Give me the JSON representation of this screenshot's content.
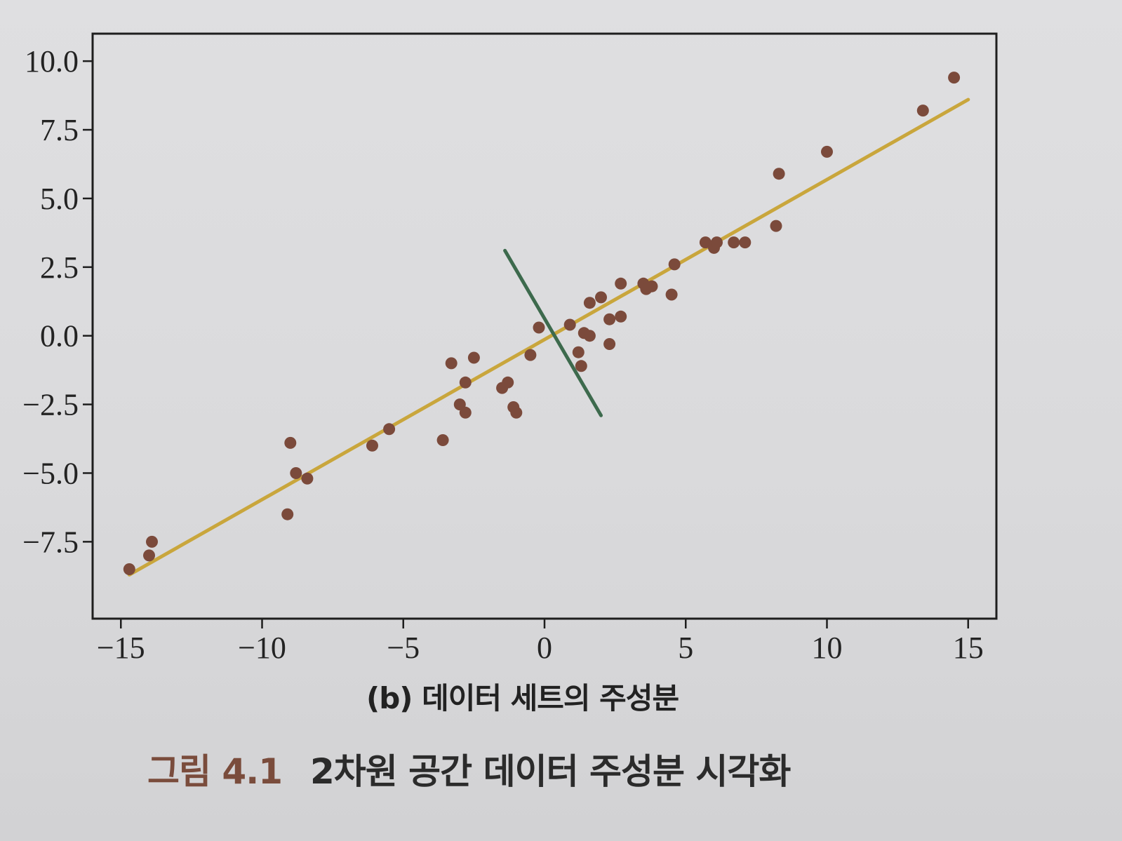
{
  "colors": {
    "frame": "#1e1e1e",
    "tick_text": "#232323",
    "subcaption": "#222222",
    "figure_label": "#7a4c3c",
    "figure_text": "#2b2b2b"
  },
  "chart_data": {
    "type": "scatter",
    "title": "",
    "xlabel": "",
    "ylabel": "",
    "xlim": [
      -16,
      16
    ],
    "ylim": [
      -10.3,
      11.0
    ],
    "grid": false,
    "xticks": {
      "values": [
        -15,
        -10,
        -5,
        0,
        5,
        10,
        15
      ],
      "labels": [
        "−15",
        "−10",
        "−5",
        "0",
        "5",
        "10",
        "15"
      ]
    },
    "yticks": {
      "values": [
        10,
        7.5,
        5,
        2.5,
        0,
        -2.5,
        -5,
        -7.5
      ],
      "labels": [
        "10.0",
        "7.5",
        "5.0",
        "2.5",
        "0.0",
        "−2.5",
        "−5.0",
        "−7.5"
      ]
    },
    "series": [
      {
        "type": "scatter",
        "color": "#7b4a3b",
        "x": [
          -14.7,
          -14.0,
          -13.9,
          -9.0,
          -8.8,
          -8.4,
          -9.1,
          -6.1,
          -5.5,
          -3.6,
          -3.3,
          -2.5,
          -2.8,
          -3.0,
          -2.8,
          -1.5,
          -1.3,
          -1.1,
          -1.0,
          -0.5,
          -0.2,
          0.9,
          1.2,
          1.3,
          1.4,
          1.6,
          1.6,
          2.0,
          2.3,
          2.3,
          2.7,
          2.7,
          3.5,
          3.6,
          3.8,
          4.5,
          4.6,
          5.7,
          6.0,
          6.1,
          6.7,
          7.1,
          8.2,
          8.3,
          10.0,
          13.4,
          14.5
        ],
        "y": [
          -8.5,
          -8.0,
          -7.5,
          -3.9,
          -5.0,
          -5.2,
          -6.5,
          -4.0,
          -3.4,
          -3.8,
          -1.0,
          -0.8,
          -1.7,
          -2.5,
          -2.8,
          -1.9,
          -1.7,
          -2.6,
          -2.8,
          -0.7,
          0.3,
          0.4,
          -0.6,
          -1.1,
          0.1,
          0.0,
          1.2,
          1.4,
          0.6,
          -0.3,
          0.7,
          1.9,
          1.9,
          1.7,
          1.8,
          1.5,
          2.6,
          3.4,
          3.2,
          3.4,
          3.4,
          3.4,
          4.0,
          5.9,
          6.7,
          8.2,
          9.4
        ]
      },
      {
        "type": "line",
        "color": "#c9a63c",
        "x": [
          -14.7,
          15.0
        ],
        "y": [
          -8.7,
          8.6
        ]
      },
      {
        "type": "line",
        "color": "#3d6a4d",
        "x": [
          -1.4,
          2.0
        ],
        "y": [
          3.1,
          -2.9
        ]
      }
    ]
  },
  "captions": {
    "subfigure": "(b) 데이터 세트의 주성분",
    "figure_label": "그림 4.1",
    "figure_text": "2차원 공간 데이터 주성분 시각화"
  }
}
